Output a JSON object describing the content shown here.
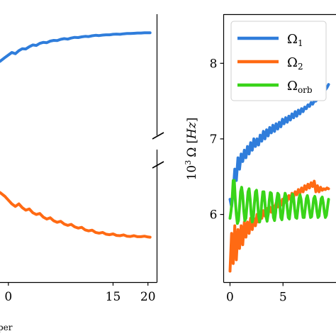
{
  "chart_data": [
    {
      "type": "line",
      "title": "",
      "xlabel": "",
      "ylabel": "",
      "xlim": [
        -1.2,
        21.3
      ],
      "ylim": [
        0,
        1
      ],
      "x_ticks": [
        "0",
        "15",
        "20"
      ],
      "x_tick_values": [
        0,
        15,
        20
      ],
      "x_tick_positions_visible": [
        0,
        15,
        20
      ],
      "grid": false,
      "legend": "none",
      "caption_fragment": "per",
      "series": [
        {
          "color": "#2f7ddb",
          "x": [
            -1.2,
            -0.5,
            0,
            0.5,
            1,
            1.5,
            2,
            2.5,
            3,
            3.5,
            4,
            4.5,
            5,
            5.5,
            6,
            6.5,
            7,
            7.5,
            8,
            8.5,
            9,
            9.5,
            10,
            10.5,
            11,
            11.5,
            12,
            12.5,
            13,
            13.5,
            14,
            14.5,
            15,
            15.5,
            16,
            16.5,
            17,
            17.5,
            18,
            18.5,
            19,
            19.5,
            20,
            20.3
          ],
          "values": [
            0.875,
            0.89,
            0.9,
            0.91,
            0.905,
            0.917,
            0.925,
            0.924,
            0.933,
            0.94,
            0.938,
            0.946,
            0.95,
            0.949,
            0.955,
            0.958,
            0.957,
            0.962,
            0.965,
            0.963,
            0.967,
            0.97,
            0.969,
            0.972,
            0.974,
            0.973,
            0.976,
            0.978,
            0.977,
            0.979,
            0.98,
            0.98,
            0.982,
            0.983,
            0.982,
            0.984,
            0.985,
            0.985,
            0.986,
            0.987,
            0.987,
            0.988,
            0.988,
            0.988
          ]
        },
        {
          "color": "#ff6a13",
          "x": [
            -1.2,
            -0.5,
            0,
            0.5,
            1,
            1.5,
            2,
            2.5,
            3,
            3.5,
            4,
            4.5,
            5,
            5.5,
            6,
            6.5,
            7,
            7.5,
            8,
            8.5,
            9,
            9.5,
            10,
            10.5,
            11,
            11.5,
            12,
            12.5,
            13,
            13.5,
            14,
            14.5,
            15,
            15.5,
            16,
            16.5,
            17,
            17.5,
            18,
            18.5,
            19,
            19.5,
            20,
            20.3
          ],
          "values": [
            0.355,
            0.34,
            0.325,
            0.31,
            0.3,
            0.31,
            0.295,
            0.285,
            0.29,
            0.275,
            0.268,
            0.272,
            0.258,
            0.25,
            0.255,
            0.243,
            0.237,
            0.241,
            0.23,
            0.225,
            0.229,
            0.219,
            0.214,
            0.217,
            0.207,
            0.203,
            0.206,
            0.197,
            0.194,
            0.197,
            0.19,
            0.188,
            0.191,
            0.185,
            0.184,
            0.187,
            0.182,
            0.181,
            0.184,
            0.18,
            0.18,
            0.182,
            0.179,
            0.178
          ]
        }
      ]
    },
    {
      "type": "line",
      "title": "",
      "xlabel": "",
      "ylabel": "10³ Ω [Hz]",
      "ylabel_parts": {
        "prefix": "10",
        "exp": "3",
        "omega": "Ω",
        "lbr": "[",
        "unit": "Hz",
        "rbr": "]"
      },
      "xlim": [
        -0.6,
        10
      ],
      "ylim": [
        5.1,
        8.65
      ],
      "x_ticks": [
        "0",
        "5"
      ],
      "x_tick_values": [
        0,
        5
      ],
      "y_ticks": [
        "6",
        "7",
        "8"
      ],
      "y_tick_values": [
        6,
        7,
        8
      ],
      "grid": false,
      "legend": "top-left",
      "series": [
        {
          "name": "Ω₁",
          "label_main": "Ω",
          "label_sub": "1",
          "color": "#2f7ddb",
          "x": [
            0.0,
            0.15,
            0.3,
            0.45,
            0.6,
            0.75,
            0.9,
            1.05,
            1.2,
            1.35,
            1.5,
            1.65,
            1.8,
            1.95,
            2.1,
            2.25,
            2.4,
            2.55,
            2.7,
            2.85,
            3.0,
            3.15,
            3.3,
            3.45,
            3.6,
            3.75,
            3.9,
            4.05,
            4.2,
            4.35,
            4.5,
            4.65,
            4.8,
            4.95,
            5.1,
            5.25,
            5.4,
            5.55,
            5.7,
            5.85,
            6.0,
            6.15,
            6.3,
            6.45,
            6.6,
            6.75,
            6.9,
            7.05,
            7.2,
            7.35,
            7.5,
            7.65,
            7.8,
            7.95,
            8.1,
            8.25,
            8.4,
            8.55,
            8.7,
            8.85,
            9.0,
            9.15,
            9.3
          ],
          "values": [
            6.2,
            6.1,
            6.3,
            6.6,
            6.45,
            6.75,
            6.6,
            6.8,
            6.7,
            6.85,
            6.75,
            6.9,
            6.8,
            6.95,
            6.85,
            7.0,
            6.9,
            7.0,
            6.92,
            7.05,
            6.97,
            7.1,
            7.0,
            7.12,
            7.04,
            7.15,
            7.08,
            7.18,
            7.1,
            7.2,
            7.13,
            7.22,
            7.16,
            7.26,
            7.2,
            7.28,
            7.22,
            7.3,
            7.25,
            7.33,
            7.28,
            7.36,
            7.3,
            7.38,
            7.33,
            7.4,
            7.36,
            7.42,
            7.4,
            7.45,
            7.43,
            7.48,
            7.46,
            7.5,
            7.5,
            7.53,
            7.55,
            7.57,
            7.6,
            7.62,
            7.65,
            7.68,
            7.72
          ]
        },
        {
          "name": "Ω₂",
          "label_main": "Ω",
          "label_sub": "2",
          "color": "#ff6a13",
          "x": [
            0.0,
            0.15,
            0.3,
            0.45,
            0.6,
            0.75,
            0.9,
            1.05,
            1.2,
            1.35,
            1.5,
            1.65,
            1.8,
            1.95,
            2.1,
            2.25,
            2.4,
            2.55,
            2.7,
            2.85,
            3.0,
            3.15,
            3.3,
            3.45,
            3.6,
            3.75,
            3.9,
            4.05,
            4.2,
            4.35,
            4.5,
            4.65,
            4.8,
            4.95,
            5.1,
            5.25,
            5.4,
            5.55,
            5.7,
            5.85,
            6.0,
            6.15,
            6.3,
            6.45,
            6.6,
            6.75,
            6.9,
            7.05,
            7.2,
            7.35,
            7.5,
            7.65,
            7.8,
            7.95,
            8.1,
            8.25,
            8.4,
            8.55,
            8.7,
            8.85,
            9.0,
            9.15,
            9.3
          ],
          "values": [
            5.25,
            5.75,
            5.35,
            5.85,
            5.4,
            5.8,
            5.55,
            5.85,
            5.6,
            5.9,
            5.7,
            5.9,
            5.75,
            5.95,
            5.8,
            5.95,
            5.85,
            6.0,
            5.9,
            6.02,
            5.95,
            6.05,
            5.98,
            6.08,
            6.0,
            6.1,
            6.03,
            6.12,
            6.05,
            6.15,
            6.1,
            6.17,
            6.12,
            6.2,
            6.15,
            6.22,
            6.18,
            6.25,
            6.2,
            6.28,
            6.23,
            6.3,
            6.26,
            6.33,
            6.28,
            6.35,
            6.3,
            6.38,
            6.33,
            6.4,
            6.35,
            6.42,
            6.37,
            6.44,
            6.3,
            6.38,
            6.3,
            6.36,
            6.32,
            6.34,
            6.33,
            6.35,
            6.34
          ]
        },
        {
          "name": "Ωorb",
          "label_main": "Ω",
          "label_sub": "orb",
          "color": "#39d419",
          "x": [
            0.0,
            0.1,
            0.2,
            0.3,
            0.4,
            0.5,
            0.6,
            0.7,
            0.8,
            0.9,
            1.0,
            1.1,
            1.2,
            1.3,
            1.4,
            1.5,
            1.6,
            1.7,
            1.8,
            1.9,
            2.0,
            2.1,
            2.2,
            2.3,
            2.4,
            2.5,
            2.6,
            2.7,
            2.8,
            2.9,
            3.0,
            3.1,
            3.2,
            3.3,
            3.4,
            3.5,
            3.6,
            3.7,
            3.8,
            3.9,
            4.0,
            4.1,
            4.2,
            4.3,
            4.4,
            4.5,
            4.6,
            4.7,
            4.8,
            4.9,
            5.0,
            5.1,
            5.2,
            5.3,
            5.4,
            5.5,
            5.6,
            5.7,
            5.8,
            5.9,
            6.0,
            6.1,
            6.2,
            6.3,
            6.4,
            6.5,
            6.6,
            6.7,
            6.8,
            6.9,
            7.0,
            7.1,
            7.2,
            7.3,
            7.4,
            7.5,
            7.6,
            7.7,
            7.8,
            7.9,
            8.0,
            8.1,
            8.2,
            8.3,
            8.4,
            8.5,
            8.6,
            8.7,
            8.8,
            8.9,
            9.0,
            9.1,
            9.2,
            9.3
          ],
          "values": [
            5.95,
            6.05,
            6.2,
            6.45,
            6.45,
            6.2,
            6.0,
            5.88,
            5.92,
            6.1,
            6.3,
            6.36,
            6.25,
            6.05,
            5.92,
            5.95,
            6.12,
            6.3,
            6.34,
            6.2,
            6.0,
            5.9,
            5.96,
            6.15,
            6.3,
            6.32,
            6.18,
            5.98,
            5.9,
            5.98,
            6.16,
            6.3,
            6.3,
            6.15,
            5.97,
            5.91,
            6.0,
            6.18,
            6.29,
            6.28,
            6.13,
            5.96,
            5.92,
            6.02,
            6.19,
            6.28,
            6.26,
            6.11,
            5.96,
            5.93,
            6.04,
            6.2,
            6.28,
            6.24,
            6.09,
            5.96,
            5.94,
            6.06,
            6.21,
            6.27,
            6.22,
            6.07,
            5.96,
            5.95,
            6.07,
            6.21,
            6.26,
            6.2,
            6.06,
            5.96,
            5.96,
            6.08,
            6.21,
            6.25,
            6.18,
            6.05,
            5.96,
            5.97,
            6.09,
            6.21,
            6.24,
            6.17,
            6.04,
            5.96,
            5.98,
            6.1,
            6.21,
            6.23,
            6.15,
            6.03,
            5.96,
            5.99,
            6.1,
            6.2
          ]
        }
      ]
    }
  ]
}
